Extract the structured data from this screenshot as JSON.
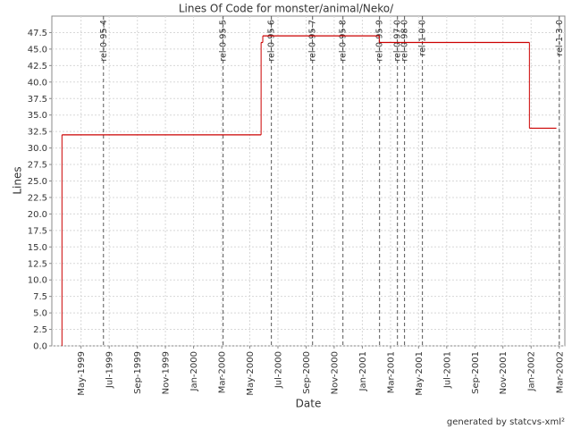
{
  "chart_data": {
    "type": "step",
    "title": "Lines Of Code for monster/animal/Neko/",
    "x_label": "Date",
    "y_label": "Lines",
    "footer": "generated by statcvs-xml²",
    "color": "#cc0000",
    "grid": true,
    "x": [
      1999.22,
      1999.22,
      2000.4,
      2000.41,
      2001.1,
      2001.99,
      2002.15
    ],
    "values": [
      0,
      32,
      46,
      47,
      46,
      33,
      33
    ],
    "xlim": [
      1999.16,
      2002.2
    ],
    "ylim": [
      0,
      50
    ],
    "xticks": [
      {
        "value": 1999.333,
        "label": "May-1999"
      },
      {
        "value": 1999.5,
        "label": "Jul-1999"
      },
      {
        "value": 1999.667,
        "label": "Sep-1999"
      },
      {
        "value": 1999.833,
        "label": "Nov-1999"
      },
      {
        "value": 2000.0,
        "label": "Jan-2000"
      },
      {
        "value": 2000.167,
        "label": "Mar-2000"
      },
      {
        "value": 2000.333,
        "label": "May-2000"
      },
      {
        "value": 2000.5,
        "label": "Jul-2000"
      },
      {
        "value": 2000.667,
        "label": "Sep-2000"
      },
      {
        "value": 2000.833,
        "label": "Nov-2000"
      },
      {
        "value": 2001.0,
        "label": "Jan-2001"
      },
      {
        "value": 2001.167,
        "label": "Mar-2001"
      },
      {
        "value": 2001.333,
        "label": "May-2001"
      },
      {
        "value": 2001.5,
        "label": "Jul-2001"
      },
      {
        "value": 2001.667,
        "label": "Sep-2001"
      },
      {
        "value": 2001.833,
        "label": "Nov-2001"
      },
      {
        "value": 2002.0,
        "label": "Jan-2002"
      },
      {
        "value": 2002.167,
        "label": "Mar-2002"
      }
    ],
    "yticks": [
      {
        "value": 0,
        "label": "0.0"
      },
      2.5,
      {
        "value": 5,
        "label": "5.0"
      },
      7.5,
      {
        "value": 10,
        "label": "10.0"
      },
      12.5,
      {
        "value": 15,
        "label": "15.0"
      },
      17.5,
      {
        "value": 20,
        "label": "20.0"
      },
      22.5,
      {
        "value": 25,
        "label": "25.0"
      },
      27.5,
      {
        "value": 30,
        "label": "30.0"
      },
      32.5,
      {
        "value": 35,
        "label": "35.0"
      },
      37.5,
      {
        "value": 40,
        "label": "40.0"
      },
      42.5,
      {
        "value": 45,
        "label": "45.0"
      },
      47.5
    ],
    "markers": [
      {
        "name": "rel-0-95-4",
        "x": 1999.466
      },
      {
        "name": "rel-0-95-5",
        "x": 2000.175
      },
      {
        "name": "rel-0-95-6",
        "x": 2000.461
      },
      {
        "name": "rel-0-95-7",
        "x": 2000.705
      },
      {
        "name": "rel-0-95-8",
        "x": 2000.885
      },
      {
        "name": "rel-0-95-9",
        "x": 2001.102
      },
      {
        "name": "rel-0-97-0",
        "x": 2001.208
      },
      {
        "name": "rel-0-98-0",
        "x": 2001.25
      },
      {
        "name": "rel-1-0-0",
        "x": 2001.356
      },
      {
        "name": "rel-1-3-0",
        "x": 2002.167
      }
    ]
  }
}
